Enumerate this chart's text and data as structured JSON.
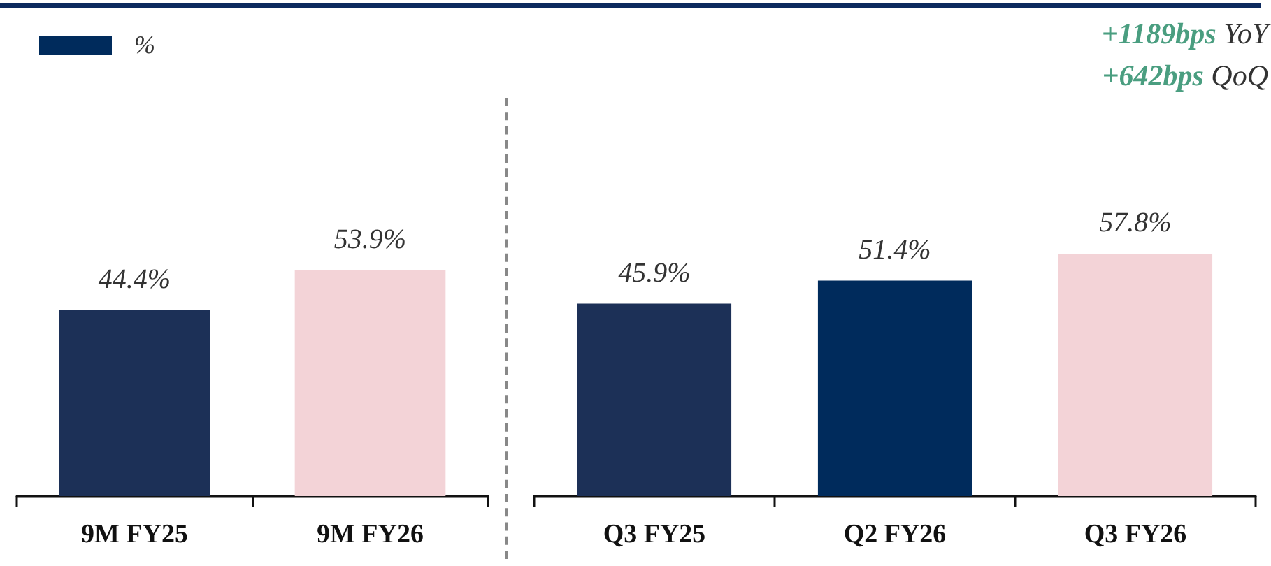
{
  "chart_data": [
    {
      "type": "bar",
      "categories": [
        "9M FY25",
        "9M FY26"
      ],
      "tick_labels": "x",
      "legend": "top left",
      "series": [
        {
          "name": "%",
          "color": "#002b5c",
          "values": [
            44.4,
            53.9
          ],
          "colors": [
            "#1c3057",
            "#f3d3d7"
          ],
          "value_labels": [
            "44.4%",
            "53.9%"
          ]
        }
      ]
    },
    {
      "type": "bar",
      "categories": [
        "Q3 FY25",
        "Q2 FY26",
        "Q3 FY26"
      ],
      "tick_labels": "x",
      "annotations": [
        "+1189bps YoY",
        "+642bps QoQ"
      ],
      "series": [
        {
          "values": [
            45.9,
            51.4,
            57.8
          ],
          "colors": [
            "#1c3057",
            "#002b5c",
            "#f3d3d7"
          ],
          "value_labels": [
            "45.9%",
            "51.4%",
            "57.8%"
          ]
        }
      ]
    }
  ]
}
